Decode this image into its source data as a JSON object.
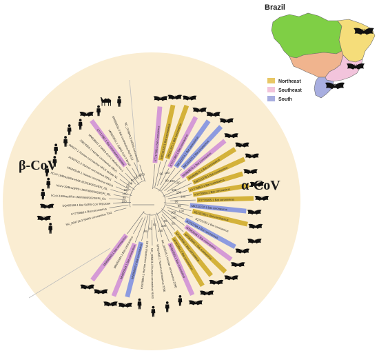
{
  "map": {
    "title": "Brazil",
    "legend": [
      {
        "label": "Northeast",
        "color": "#e8c765"
      },
      {
        "label": "Southeast",
        "color": "#f2c4dc"
      },
      {
        "label": "South",
        "color": "#a8aee0"
      }
    ],
    "region_colors": {
      "north": "#7fcf45",
      "central_west": "#f0b48e",
      "northeast": "#f5dd7a",
      "southeast": "#f2c4dc",
      "south": "#a8aee0",
      "outline": "#6b6b6b"
    }
  },
  "tree": {
    "background": "#faedd2",
    "branch_color": "#7a7a7a",
    "clade_labels": {
      "beta": "β-CoV",
      "alpha": "α-CoV"
    },
    "highlight_colors": {
      "northeast": "#d4b23a",
      "southeast": "#d59ad6",
      "south": "#8d9be0"
    },
    "leaves_beta": [
      {
        "label": "NC_019843.3 MERS coronavirus",
        "host": "human",
        "hl": "none"
      },
      {
        "label": "MN996532.2 Bat coronavirus RaTG13",
        "host": "camel",
        "hl": "none"
      },
      {
        "label": "MW030511.1 SARS-CoV-2 Brazil",
        "host": "human",
        "hl": "none"
      },
      {
        "label": "KT717387.1 Bat coronavirus isolate",
        "host": "bat",
        "hl": "southeast"
      },
      {
        "label": "MN908947.3 SARS-CoV-2 Wuhan-Hu-1",
        "host": "human",
        "hl": "none"
      },
      {
        "label": "JN874559.1 Human coronavirus HKU1",
        "host": "human",
        "hl": "none"
      },
      {
        "label": "NC_006577.2 Human coronavirus HKU1 isolate N1",
        "host": "human",
        "hl": "none"
      },
      {
        "label": "AY597011.2 Human coronavirus HKU1",
        "host": "human",
        "hl": "none"
      },
      {
        "label": "MK840245.1 Human coronavirus HKU1",
        "host": "human",
        "hl": "none"
      },
      {
        "label": "hCoV-19/Brazil/RS-HIAE-ID2018/2021/EPI_ISL",
        "host": "human",
        "hl": "none"
      },
      {
        "label": "hCoV-19/Brazil/RS-LMM7660/2020/EPI_ISL",
        "host": "human",
        "hl": "none"
      },
      {
        "label": "hCoV-19/Brazil/RS-LMM7669/2020/EPI_ISL",
        "host": "human",
        "hl": "none"
      },
      {
        "label": "DQ497008.1 Bat SARS CoV Rf1/2004",
        "host": "bat",
        "hl": "none"
      },
      {
        "label": "KY770860.1 Bat coronavirus",
        "host": "bat",
        "hl": "none"
      },
      {
        "label": "NC_004718.3 SARS coronavirus Tor2",
        "host": "human",
        "hl": "none"
      }
    ],
    "leaves_alpha": [
      {
        "label": "KT717386.1 Bat coronavirus",
        "host": "bat",
        "hl": "southeast"
      },
      {
        "label": "MK211370.1 Bat coronavirus",
        "host": "bat",
        "hl": "northeast"
      },
      {
        "label": "MK211371.1 Bat coronavirus",
        "host": "bat",
        "hl": "northeast"
      },
      {
        "label": "KT717385.1 Bat coronavirus",
        "host": "bat",
        "hl": "southeast"
      },
      {
        "label": "MK211374.1 Bat coronavirus",
        "host": "bat",
        "hl": "south"
      },
      {
        "label": "MK211375.1 Bat coronavirus",
        "host": "bat",
        "hl": "south"
      },
      {
        "label": "MN868570.1 Bat coronavirus",
        "host": "bat",
        "hl": "southeast"
      },
      {
        "label": "MN868571.1 Bat coronavirus",
        "host": "bat",
        "hl": "northeast"
      },
      {
        "label": "MK211378.1 Bat coronavirus",
        "host": "bat",
        "hl": "northeast"
      },
      {
        "label": "KY770853.1 Bat coronavirus",
        "host": "bat",
        "hl": "northeast"
      },
      {
        "label": "KY770854.1 Bat coronavirus",
        "host": "bat",
        "hl": "northeast"
      },
      {
        "label": "KY770855.1 Bat coronavirus",
        "host": "bat",
        "hl": "northeast"
      },
      {
        "label": "MK211372.1 Bat coronavirus",
        "host": "bat",
        "hl": "south"
      },
      {
        "label": "JQ731782.1 Bat coronavirus",
        "host": "bat",
        "hl": "northeast"
      },
      {
        "label": "JQ731783.1 Bat coronavirus",
        "host": "bat",
        "hl": "none"
      },
      {
        "label": "JQ731784.1 Bat coronavirus",
        "host": "bat",
        "hl": "south"
      },
      {
        "label": "MT663548.1 Bat coronavirus",
        "host": "bat",
        "hl": "southeast"
      },
      {
        "label": "MT663549.1 Bat coronavirus",
        "host": "bat",
        "hl": "northeast"
      },
      {
        "label": "MT663550.1 Bat coronavirus",
        "host": "bat",
        "hl": "northeast"
      },
      {
        "label": "MT663551.1 Bat coronavirus",
        "host": "bat",
        "hl": "northeast"
      },
      {
        "label": "MT663552.1 Bat coronavirus",
        "host": "bat",
        "hl": "southeast"
      },
      {
        "label": "NC_002645.1 Human coronavirus 229E",
        "host": "human",
        "hl": "none"
      },
      {
        "label": "KF514433.1 Human coronavirus 229E",
        "host": "human",
        "hl": "none"
      },
      {
        "label": "NC_005831.2 Human coronavirus NL63",
        "host": "human",
        "hl": "none"
      },
      {
        "label": "KX538964.1 Human coronavirus NL63",
        "host": "human",
        "hl": "none"
      },
      {
        "label": "MN056942.1 Bat coronavirus",
        "host": "bat",
        "hl": "south"
      },
      {
        "label": "MN056943.1 Bat coronavirus",
        "host": "bat",
        "hl": "southeast"
      },
      {
        "label": "MN056944.1 Bat coronavirus",
        "host": "bat",
        "hl": "none"
      },
      {
        "label": "MN056945.1 Bat coronavirus",
        "host": "bat",
        "hl": "southeast"
      }
    ],
    "bootstrap_values": [
      "100",
      "100",
      "99",
      "90",
      "100",
      "62",
      "100",
      "100",
      "98",
      "100",
      "96",
      "100",
      "99",
      "100",
      "100",
      "100",
      "100",
      "100",
      "96",
      "98",
      "100",
      "100",
      "100",
      "82",
      "99",
      "100",
      "100",
      "56",
      "60",
      "99"
    ]
  }
}
